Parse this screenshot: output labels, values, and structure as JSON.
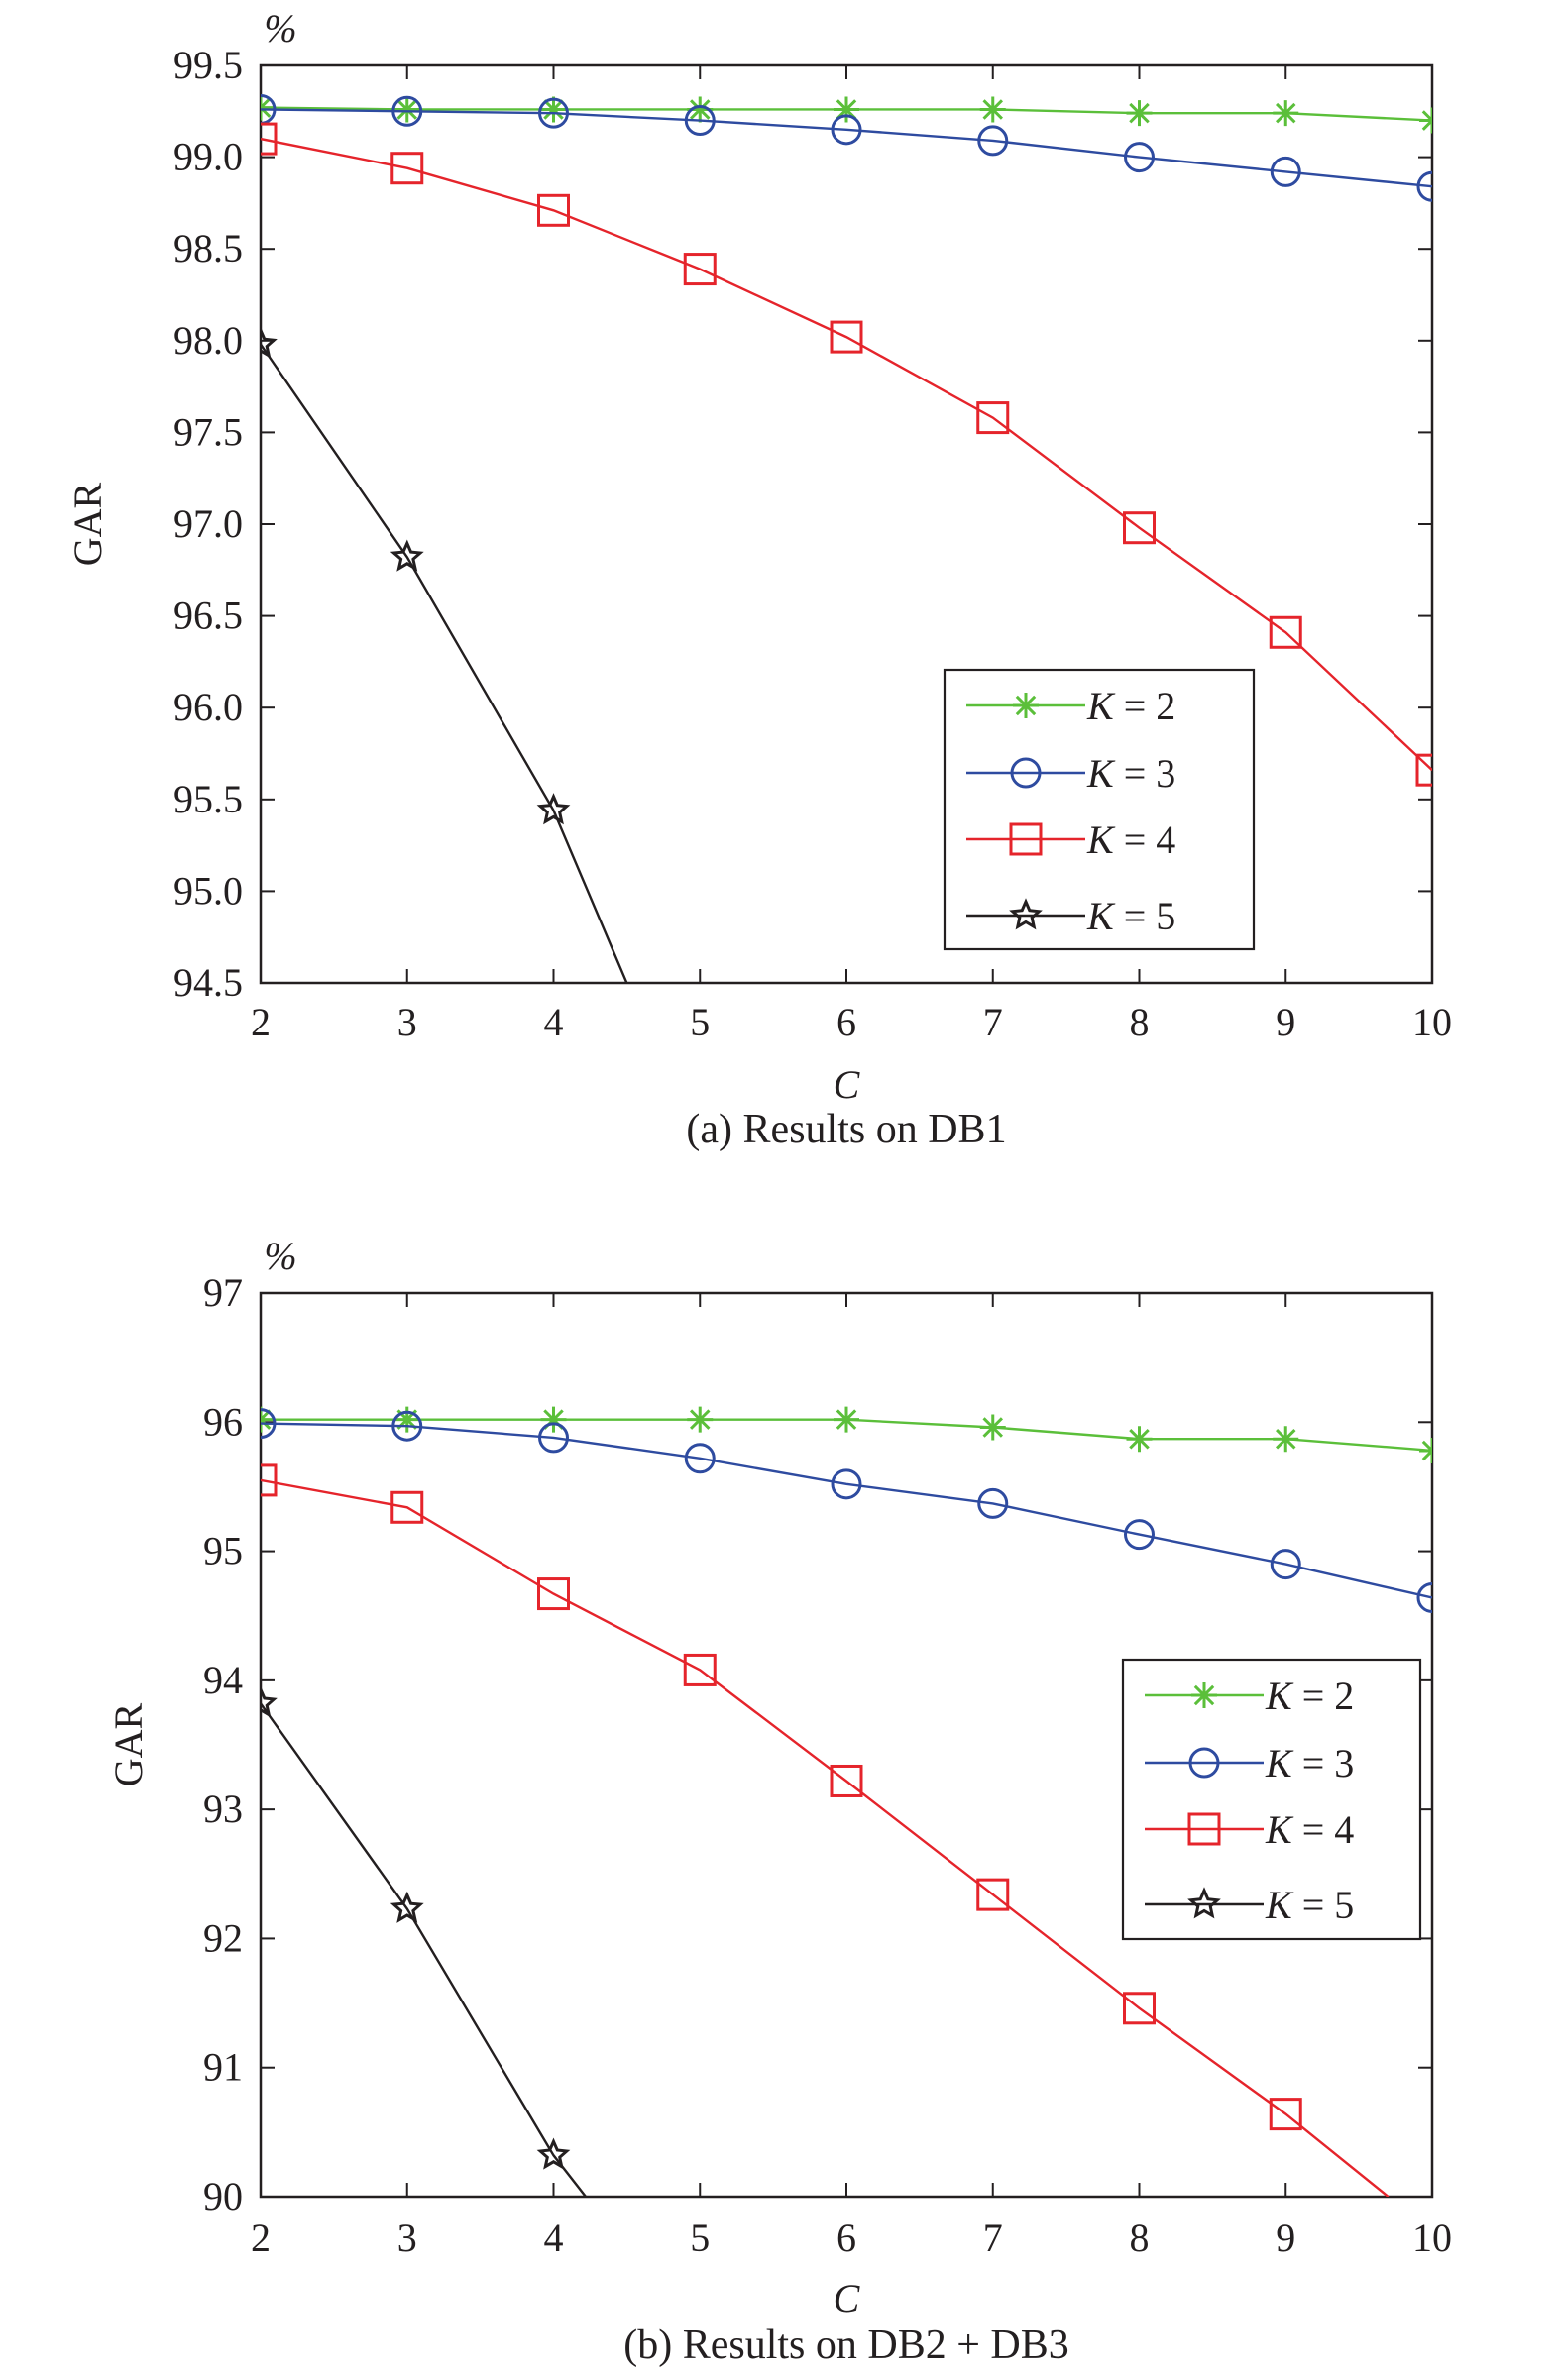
{
  "chart_data": [
    {
      "type": "line",
      "caption": "(a) Results on DB1",
      "xlabel": "C",
      "ylabel": "GAR",
      "unit": "%",
      "xlim": [
        2,
        10
      ],
      "ylim": [
        94.5,
        99.5
      ],
      "xticks": [
        2,
        3,
        4,
        5,
        6,
        7,
        8,
        9,
        10
      ],
      "xtick_labels": [
        "2",
        "3",
        "4",
        "5",
        "6",
        "7",
        "8",
        "9",
        "10"
      ],
      "yticks": [
        94.5,
        95.0,
        95.5,
        96.0,
        96.5,
        97.0,
        97.5,
        98.0,
        98.5,
        99.0,
        99.5
      ],
      "ytick_labels": [
        "94.5",
        "95.0",
        "95.5",
        "96.0",
        "96.5",
        "97.0",
        "97.5",
        "98.0",
        "98.5",
        "99.0",
        "99.5"
      ],
      "grid": false,
      "legend_position": "lower-right",
      "series": [
        {
          "name": "K = 2",
          "label_var": "K",
          "label_rest": " = 2",
          "color": "#5bbf3a",
          "marker": "asterisk",
          "x": [
            2,
            3,
            4,
            5,
            6,
            7,
            8,
            9,
            10
          ],
          "y": [
            99.27,
            99.26,
            99.26,
            99.26,
            99.26,
            99.26,
            99.24,
            99.24,
            99.2
          ]
        },
        {
          "name": "K = 3",
          "label_var": "K",
          "label_rest": " = 3",
          "color": "#2e4ba0",
          "marker": "circle",
          "x": [
            2,
            3,
            4,
            5,
            6,
            7,
            8,
            9,
            10
          ],
          "y": [
            99.26,
            99.25,
            99.24,
            99.2,
            99.15,
            99.09,
            99.0,
            98.92,
            98.84
          ]
        },
        {
          "name": "K = 4",
          "label_var": "K",
          "label_rest": " = 4",
          "color": "#e5242b",
          "marker": "square",
          "x": [
            2,
            3,
            4,
            5,
            6,
            7,
            8,
            9,
            10
          ],
          "y": [
            99.1,
            98.94,
            98.71,
            98.39,
            98.02,
            97.58,
            96.98,
            96.41,
            95.66
          ]
        },
        {
          "name": "K = 5",
          "label_var": "K",
          "label_rest": " = 5",
          "color": "#231f20",
          "marker": "star",
          "x": [
            2,
            3,
            4,
            4.5
          ],
          "y": [
            97.98,
            96.82,
            95.44,
            94.5
          ],
          "markers_shown": 3
        }
      ]
    },
    {
      "type": "line",
      "caption": "(b) Results on DB2 + DB3",
      "xlabel": "C",
      "ylabel": "GAR",
      "unit": "%",
      "xlim": [
        2,
        10
      ],
      "ylim": [
        90,
        97
      ],
      "xticks": [
        2,
        3,
        4,
        5,
        6,
        7,
        8,
        9,
        10
      ],
      "xtick_labels": [
        "2",
        "3",
        "4",
        "5",
        "6",
        "7",
        "8",
        "9",
        "10"
      ],
      "yticks": [
        90,
        91,
        92,
        93,
        94,
        95,
        96,
        97
      ],
      "ytick_labels": [
        "90",
        "91",
        "92",
        "93",
        "94",
        "95",
        "96",
        "97"
      ],
      "grid": false,
      "legend_position": "right",
      "series": [
        {
          "name": "K = 2",
          "label_var": "K",
          "label_rest": " = 2",
          "color": "#5bbf3a",
          "marker": "asterisk",
          "x": [
            2,
            3,
            4,
            5,
            6,
            7,
            8,
            9,
            10
          ],
          "y": [
            96.02,
            96.02,
            96.02,
            96.02,
            96.02,
            95.96,
            95.87,
            95.87,
            95.78
          ]
        },
        {
          "name": "K = 3",
          "label_var": "K",
          "label_rest": " = 3",
          "color": "#2e4ba0",
          "marker": "circle",
          "x": [
            2,
            3,
            4,
            5,
            6,
            7,
            8,
            9,
            10
          ],
          "y": [
            95.99,
            95.97,
            95.88,
            95.72,
            95.52,
            95.37,
            95.13,
            94.9,
            94.64
          ]
        },
        {
          "name": "K = 4",
          "label_var": "K",
          "label_rest": " = 4",
          "color": "#e5242b",
          "marker": "square",
          "x": [
            2,
            3,
            4,
            5,
            6,
            7,
            8,
            9,
            9.7
          ],
          "y": [
            95.55,
            95.34,
            94.67,
            94.08,
            93.22,
            92.34,
            91.46,
            90.64,
            90.0
          ],
          "markers_shown": 8
        },
        {
          "name": "K = 5",
          "label_var": "K",
          "label_rest": " = 5",
          "color": "#231f20",
          "marker": "star",
          "x": [
            2,
            3,
            4,
            4.22
          ],
          "y": [
            93.82,
            92.23,
            90.32,
            90.0
          ],
          "markers_shown": 3
        }
      ]
    }
  ]
}
